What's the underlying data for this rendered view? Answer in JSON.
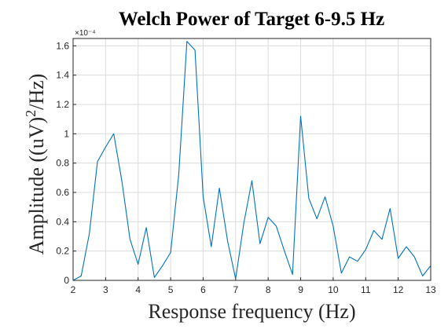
{
  "chart_data": {
    "type": "line",
    "title": "Welch Power of Target 6-9.5 Hz",
    "xlabel": "Response frequency (Hz)",
    "ylabel_main": "Amplitude ((uV)",
    "ylabel_sup": "2",
    "ylabel_tail": "/Hz)",
    "y_exponent_label": "×10⁻⁴",
    "xlim": [
      2,
      13
    ],
    "ylim": [
      0,
      1.65
    ],
    "xticks": [
      2,
      3,
      4,
      5,
      6,
      7,
      8,
      9,
      10,
      11,
      12,
      13
    ],
    "yticks": [
      0,
      0.2,
      0.4,
      0.6,
      0.8,
      1,
      1.2,
      1.4,
      1.6
    ],
    "ytick_labels": [
      "0",
      "0.2",
      "0.4",
      "0.6",
      "0.8",
      "1",
      "1.2",
      "1.4",
      "1.6"
    ],
    "grid": true,
    "line_color": "#0072bd",
    "series": [
      {
        "x": [
          2.0,
          2.25,
          2.5,
          2.75,
          3.0,
          3.25,
          3.5,
          3.75,
          4.0,
          4.25,
          4.5,
          4.75,
          5.0,
          5.25,
          5.5,
          5.75,
          6.0,
          6.25,
          6.5,
          6.75,
          7.0,
          7.25,
          7.5,
          7.75,
          8.0,
          8.25,
          8.5,
          8.75,
          9.0,
          9.25,
          9.5,
          9.75,
          10.0,
          10.25,
          10.5,
          10.75,
          11.0,
          11.25,
          11.5,
          11.75,
          12.0,
          12.25,
          12.5,
          12.75,
          13.0
        ],
        "values": [
          0.0,
          0.03,
          0.32,
          0.81,
          0.91,
          1.0,
          0.68,
          0.28,
          0.11,
          0.36,
          0.02,
          0.1,
          0.19,
          0.72,
          1.63,
          1.57,
          0.57,
          0.23,
          0.63,
          0.27,
          0.01,
          0.39,
          0.68,
          0.25,
          0.43,
          0.37,
          0.2,
          0.04,
          1.12,
          0.56,
          0.42,
          0.57,
          0.37,
          0.05,
          0.16,
          0.13,
          0.21,
          0.34,
          0.28,
          0.49,
          0.15,
          0.23,
          0.16,
          0.03,
          0.1
        ]
      }
    ]
  }
}
